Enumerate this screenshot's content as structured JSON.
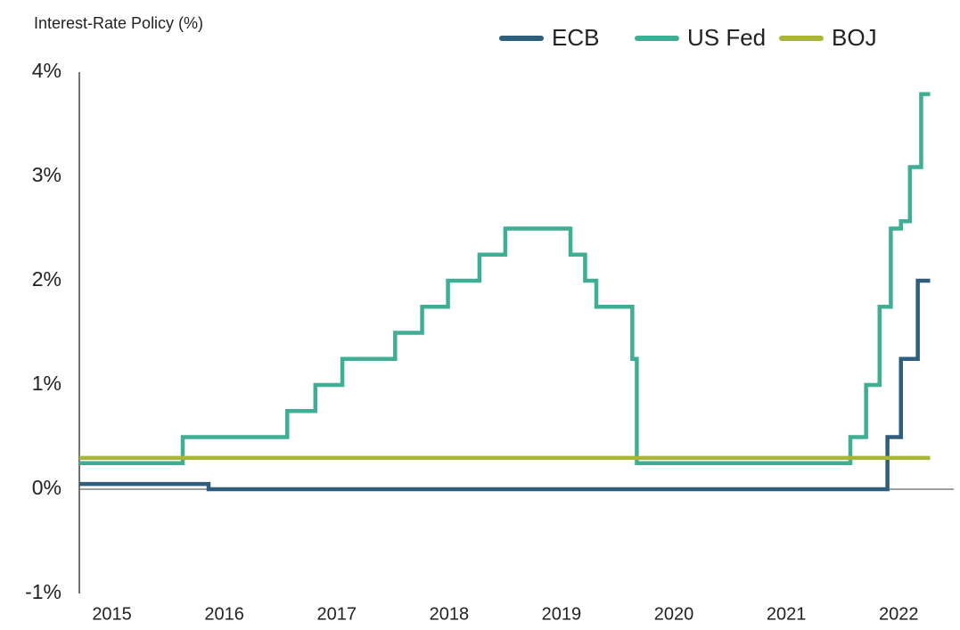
{
  "chart_data": {
    "type": "line",
    "step": "post",
    "title": "Interest-Rate Policy (%)",
    "xlim": [
      2014.71,
      2022.49
    ],
    "xticks": [
      2015,
      2016,
      2017,
      2018,
      2019,
      2020,
      2021,
      2022
    ],
    "ylim": [
      -1,
      4
    ],
    "yticks": [
      {
        "value": -1,
        "label": "-1%"
      },
      {
        "value": 0,
        "label": "0%"
      },
      {
        "value": 1,
        "label": "1%"
      },
      {
        "value": 2,
        "label": "2%"
      },
      {
        "value": 3,
        "label": "3%"
      },
      {
        "value": 4,
        "label": "4%"
      }
    ],
    "series": [
      {
        "name": "ECB",
        "color": "#2e5e7c",
        "x": [
          2014.71,
          2015.86,
          2021.9,
          2022.02,
          2022.17,
          2022.28
        ],
        "values": [
          0.05,
          0,
          0.5,
          1.25,
          2.0,
          2.0
        ]
      },
      {
        "name": "US Fed",
        "color": "#3fae94",
        "x": [
          2014.71,
          2015.63,
          2016.56,
          2016.81,
          2017.05,
          2017.52,
          2017.76,
          2017.99,
          2018.27,
          2018.5,
          2019.08,
          2019.21,
          2019.31,
          2019.63,
          2019.67,
          2021.57,
          2021.71,
          2021.83,
          2021.93,
          2022.02,
          2022.1,
          2022.2,
          2022.28
        ],
        "values": [
          0.25,
          0.5,
          0.75,
          1.0,
          1.25,
          1.5,
          1.75,
          2.0,
          2.25,
          2.5,
          2.25,
          2.0,
          1.75,
          1.25,
          0.25,
          0.5,
          1.0,
          1.75,
          2.5,
          2.57,
          3.09,
          3.79,
          3.79
        ]
      },
      {
        "name": "BOJ",
        "color": "#a9b53a",
        "x": [
          2014.71,
          2022.28
        ],
        "values": [
          0.3,
          0.3
        ]
      }
    ]
  }
}
